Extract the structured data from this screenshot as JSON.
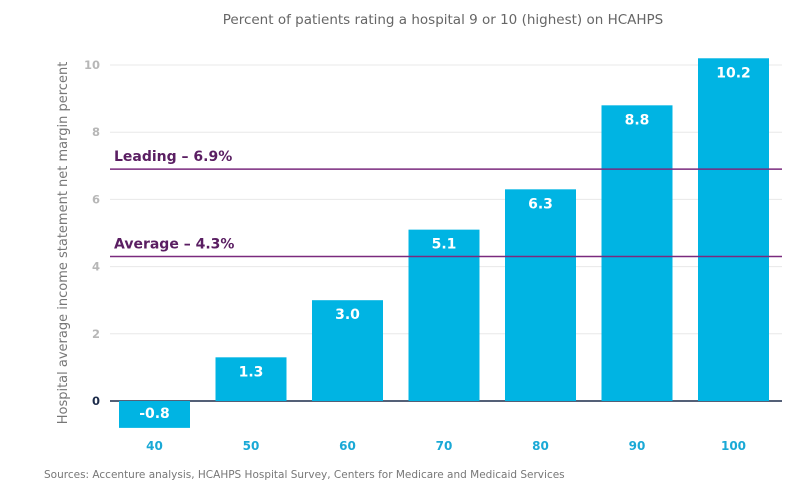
{
  "chart_data": {
    "type": "bar",
    "title": "Percent of patients rating a hospital 9 or 10 (highest) on HCAHPS",
    "ylabel": "Hospital average income statement net margin percent",
    "xlabel": "",
    "categories": [
      "40",
      "50",
      "60",
      "70",
      "80",
      "90",
      "100"
    ],
    "values": [
      -0.8,
      1.3,
      3.0,
      5.1,
      6.3,
      8.8,
      10.2
    ],
    "data_labels": [
      "-0.8",
      "1.3",
      "3.0",
      "5.1",
      "6.3",
      "8.8",
      "10.2"
    ],
    "ylim": [
      -0.8,
      10.6
    ],
    "yticks": [
      0,
      2,
      4,
      6,
      8,
      10
    ],
    "grid": true,
    "reference_lines": [
      {
        "label": "Leading – 6.9%",
        "value": 6.9
      },
      {
        "label": "Average – 4.3%",
        "value": 4.3
      }
    ],
    "colors": {
      "bar": "#00b4e3",
      "reference_line": "#7a2a7e",
      "reference_label": "#5a1e62",
      "xtick": "#1aa9d6",
      "grid": "#e8e8e8",
      "zero_axis": "#1c2b4a"
    }
  },
  "source": "Sources: Accenture analysis, HCAHPS Hospital Survey, Centers for Medicare and Medicaid Services"
}
